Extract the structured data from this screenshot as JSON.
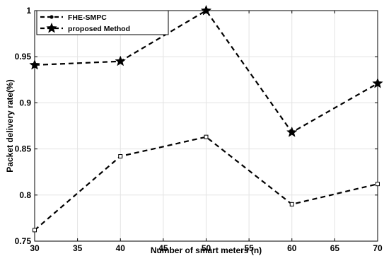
{
  "chart_data": {
    "type": "line",
    "title": "",
    "xlabel": "Number of smart meters (n)",
    "ylabel": "Packet delivery rate(%)",
    "xlim": [
      30,
      70
    ],
    "ylim": [
      0.75,
      1
    ],
    "xticks": [
      "30",
      "35",
      "40",
      "45",
      "50",
      "55",
      "60",
      "65",
      "70"
    ],
    "yticks": [
      "0.75",
      "0.8",
      "0.85",
      "0.9",
      "0.95",
      "1"
    ],
    "grid": true,
    "legend_position": "top-left",
    "x": [
      30,
      40,
      50,
      60,
      70
    ],
    "series": [
      {
        "name": "FHE-SMPC",
        "marker": "square",
        "line_style": "dashed",
        "color": "#000000",
        "values": [
          0.762,
          0.842,
          0.863,
          0.79,
          0.812
        ]
      },
      {
        "name": "proposed Method",
        "marker": "star",
        "line_style": "dashed",
        "color": "#000000",
        "values": [
          0.941,
          0.945,
          1.0,
          0.868,
          0.921
        ]
      }
    ]
  }
}
